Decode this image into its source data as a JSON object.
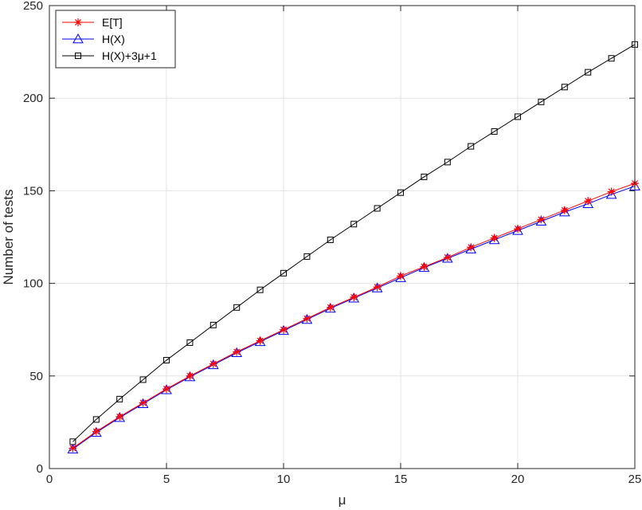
{
  "chart_data": {
    "type": "line",
    "title": "",
    "xlabel": "μ",
    "ylabel": "Number of tests",
    "xlim": [
      0,
      25
    ],
    "ylim": [
      0,
      250
    ],
    "xticks": [
      0,
      5,
      10,
      15,
      20,
      25
    ],
    "yticks": [
      0,
      50,
      100,
      150,
      200,
      250
    ],
    "grid": true,
    "legend_position": "top-left",
    "x": [
      1,
      2,
      3,
      4,
      5,
      6,
      7,
      8,
      9,
      10,
      11,
      12,
      13,
      14,
      15,
      16,
      17,
      18,
      19,
      20,
      21,
      22,
      23,
      24,
      25
    ],
    "series": [
      {
        "name": "E[T]",
        "color": "#ff0000",
        "marker": "asterisk",
        "values": [
          11,
          20,
          28,
          35.5,
          43,
          50,
          56.5,
          63,
          69,
          75,
          81,
          87,
          92.5,
          98,
          104,
          109,
          114,
          119.5,
          124.5,
          129.5,
          134.5,
          139.5,
          144.5,
          149.5,
          154
        ]
      },
      {
        "name": "H(X)",
        "color": "#0000ff",
        "marker": "triangle",
        "values": [
          10.5,
          19.5,
          27.5,
          35,
          42.5,
          49.5,
          56,
          62.5,
          68.5,
          74.5,
          80.5,
          86.5,
          92,
          97.5,
          103,
          108.5,
          113.5,
          118.5,
          123.5,
          128.5,
          133.5,
          138.5,
          143,
          148,
          152.5
        ]
      },
      {
        "name": "H(X)+3μ+1",
        "color": "#000000",
        "marker": "square",
        "values": [
          14.5,
          26.5,
          37.5,
          48,
          58.5,
          68,
          77.5,
          87,
          96.5,
          105.5,
          114.5,
          123.5,
          132,
          140.5,
          149,
          157.5,
          165.5,
          174,
          182,
          190,
          198,
          206,
          214,
          221.5,
          229
        ]
      }
    ]
  }
}
